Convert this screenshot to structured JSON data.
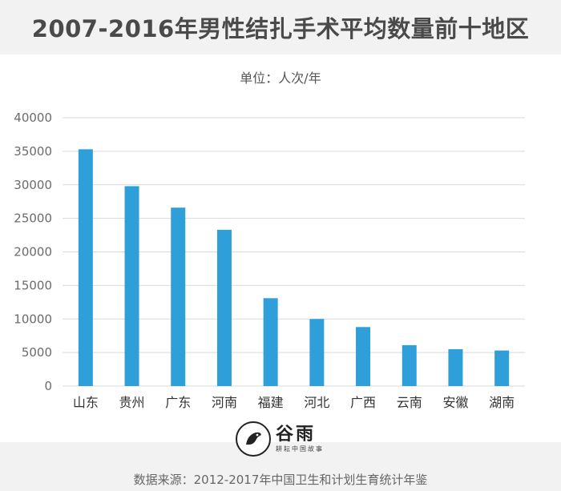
{
  "title": "2007-2016年男性结扎手术平均数量前十地区",
  "unit_label": "单位：人次/年",
  "logo": {
    "name": "谷雨",
    "tagline": "耕耘中国故事",
    "icon": "bird-icon"
  },
  "source": "数据来源：2012-2017年中国卫生和计划生育统计年鉴",
  "colors": {
    "bar": "#2e9fd8",
    "grid": "#d9d9d9",
    "title_band": "#f2f2f2"
  },
  "chart_data": {
    "type": "bar",
    "title": "2007-2016年男性结扎手术平均数量前十地区",
    "xlabel": "",
    "ylabel": "",
    "categories": [
      "山东",
      "贵州",
      "广东",
      "河南",
      "福建",
      "河北",
      "广西",
      "云南",
      "安徽",
      "湖南"
    ],
    "values": [
      35300,
      29800,
      26600,
      23300,
      13100,
      10000,
      8800,
      6100,
      5500,
      5300
    ],
    "ylim": [
      0,
      40000
    ],
    "yticks": [
      "0",
      "5000",
      "10000",
      "15000",
      "20000",
      "25000",
      "30000",
      "35000",
      "40000"
    ],
    "grid": true,
    "legend": "none"
  }
}
